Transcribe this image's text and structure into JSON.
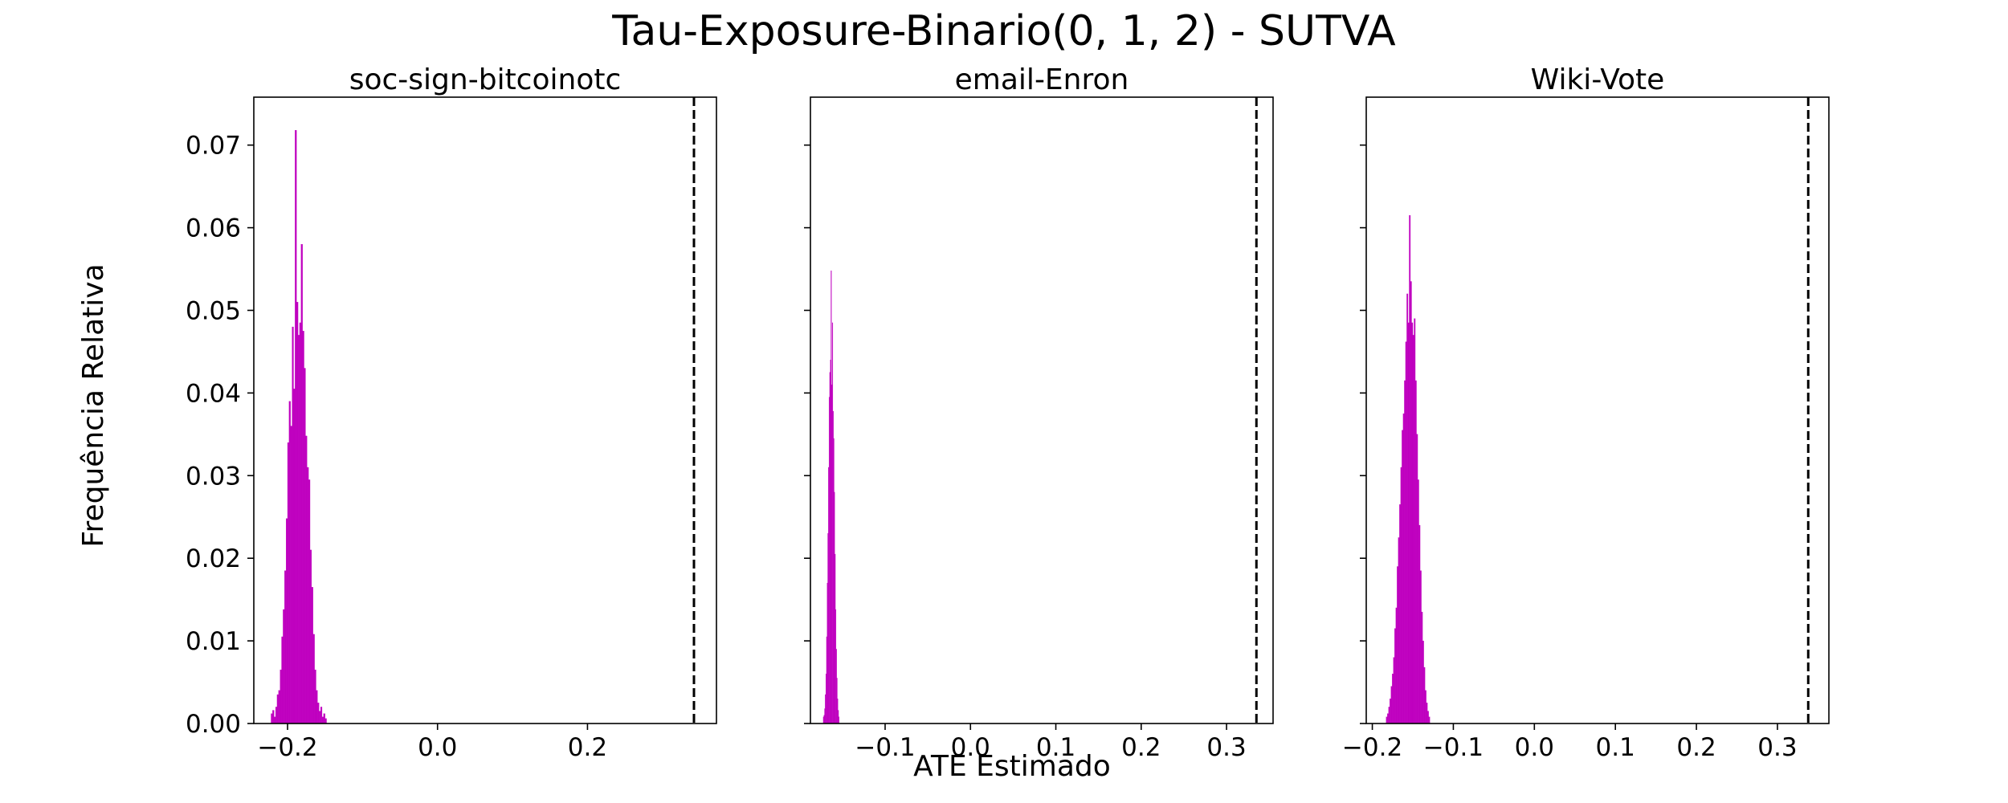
{
  "figure": {
    "title": "Tau-Exposure-Binario(0, 1, 2) - SUTVA",
    "xlabel": "ATE Estimado",
    "ylabel": "Frequência Relativa"
  },
  "colors": {
    "bars": "#bf00bf",
    "reference_line": "#000000",
    "background": "#ffffff",
    "axes": "#000000"
  },
  "chart_data": [
    {
      "type": "histogram",
      "title": "soc-sign-bitcoinotc",
      "xlim": [
        -0.245,
        0.372
      ],
      "ylim": [
        0,
        0.0758
      ],
      "xticks": [
        -0.2,
        0.0,
        0.2
      ],
      "xtick_labels": [
        "−0.2",
        "0.0",
        "0.2"
      ],
      "yticks": [
        0.0,
        0.01,
        0.02,
        0.03,
        0.04,
        0.05,
        0.06,
        0.07
      ],
      "ytick_labels": [
        "0.00",
        "0.01",
        "0.02",
        "0.03",
        "0.04",
        "0.05",
        "0.06",
        "0.07"
      ],
      "reference_line_x": 0.342,
      "bins": {
        "start": -0.222,
        "width": 0.002,
        "values": [
          0.0012,
          0.0016,
          0.0008,
          0.002,
          0.0035,
          0.004,
          0.0065,
          0.0105,
          0.0138,
          0.0185,
          0.0248,
          0.034,
          0.039,
          0.036,
          0.048,
          0.0405,
          0.0718,
          0.051,
          0.047,
          0.0485,
          0.058,
          0.0475,
          0.043,
          0.0348,
          0.031,
          0.0295,
          0.021,
          0.0165,
          0.0108,
          0.0065,
          0.004,
          0.0025,
          0.0015,
          0.002,
          0.0008,
          0.0012,
          0.0006
        ]
      }
    },
    {
      "type": "histogram",
      "title": "email-Enron",
      "xlim": [
        -0.1875,
        0.3545
      ],
      "ylim": [
        0,
        0.0758
      ],
      "xticks": [
        -0.1,
        0.0,
        0.1,
        0.2,
        0.3
      ],
      "xtick_labels": [
        "−0.1",
        "0.0",
        "0.1",
        "0.2",
        "0.3"
      ],
      "yticks": [
        0.0,
        0.01,
        0.02,
        0.03,
        0.04,
        0.05,
        0.06,
        0.07
      ],
      "ytick_labels": [],
      "reference_line_x": 0.335,
      "bins": {
        "start": -0.1725,
        "width": 0.00075,
        "values": [
          0.0008,
          0.001,
          0.0018,
          0.0035,
          0.006,
          0.0105,
          0.017,
          0.023,
          0.031,
          0.0395,
          0.0425,
          0.044,
          0.0548,
          0.041,
          0.0485,
          0.0378,
          0.0345,
          0.028,
          0.0205,
          0.0138,
          0.009,
          0.0055,
          0.003,
          0.0016,
          0.0008
        ]
      }
    },
    {
      "type": "histogram",
      "title": "Wiki-Vote",
      "xlim": [
        -0.2075,
        0.3635
      ],
      "ylim": [
        0,
        0.0758
      ],
      "xticks": [
        -0.2,
        -0.1,
        0.0,
        0.1,
        0.2,
        0.3
      ],
      "xtick_labels": [
        "−0.2",
        "−0.1",
        "0.0",
        "0.1",
        "0.2",
        "0.3"
      ],
      "yticks": [
        0.0,
        0.01,
        0.02,
        0.03,
        0.04,
        0.05,
        0.06,
        0.07
      ],
      "ytick_labels": [],
      "reference_line_x": 0.338,
      "bins": {
        "start": -0.183,
        "width": 0.0015,
        "values": [
          0.0008,
          0.0012,
          0.002,
          0.003,
          0.0045,
          0.006,
          0.008,
          0.0115,
          0.014,
          0.019,
          0.0225,
          0.0265,
          0.031,
          0.0355,
          0.0375,
          0.0415,
          0.0462,
          0.052,
          0.0485,
          0.0615,
          0.0535,
          0.0485,
          0.047,
          0.049,
          0.0415,
          0.035,
          0.0295,
          0.024,
          0.0185,
          0.0135,
          0.01,
          0.0068,
          0.004,
          0.0025,
          0.0015,
          0.0008
        ]
      }
    }
  ]
}
